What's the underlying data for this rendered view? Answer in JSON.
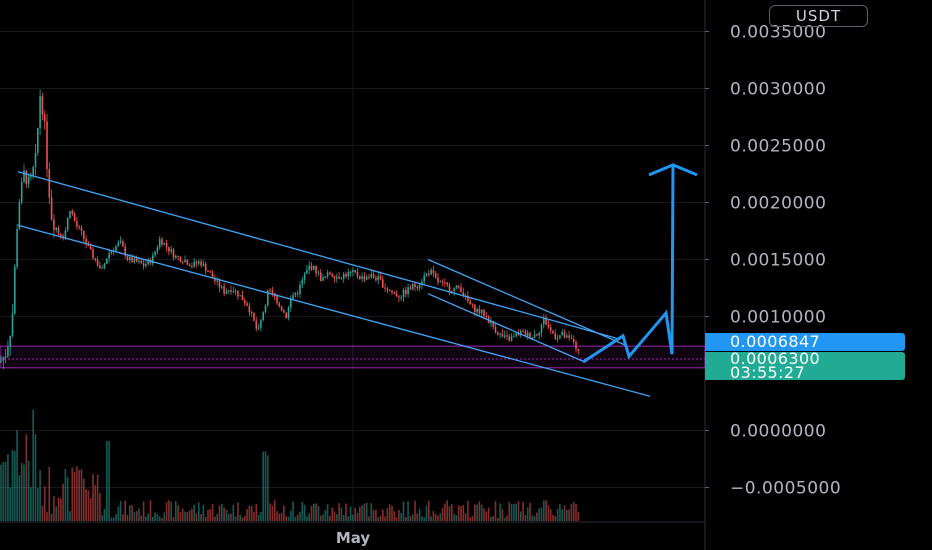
{
  "header": {
    "currency": "USDT"
  },
  "price_tags": {
    "target": "0.0006847",
    "last": "0.0006300",
    "countdown": "03:55:27"
  },
  "colors": {
    "background": "#000000",
    "up_candle": "#26a69a",
    "down_candle": "#ef5350",
    "channel_line": "#42a5f5",
    "projection": "#2196f3",
    "support_zone": "#9c27b0",
    "axis_text": "#b2b5be"
  },
  "chart_data": {
    "type": "candlestick",
    "y_axis": {
      "ticks": [
        "0.0035000",
        "0.0030000",
        "0.0025000",
        "0.0020000",
        "0.0015000",
        "0.0010000",
        "0.0000000",
        "−0.0005000"
      ],
      "tick_values": [
        0.0035,
        0.003,
        0.0025,
        0.002,
        0.0015,
        0.001,
        0.0,
        -0.0005
      ],
      "range": [
        -0.00058,
        0.0038
      ]
    },
    "x_axis": {
      "labels": [
        "May"
      ]
    },
    "price_path": [
      [
        0,
        0.0006
      ],
      [
        6,
        0.00068
      ],
      [
        12,
        0.00095
      ],
      [
        18,
        0.00195
      ],
      [
        24,
        0.00225
      ],
      [
        30,
        0.00215
      ],
      [
        36,
        0.0024
      ],
      [
        40,
        0.00295
      ],
      [
        44,
        0.00275
      ],
      [
        48,
        0.0022
      ],
      [
        52,
        0.00185
      ],
      [
        58,
        0.00175
      ],
      [
        64,
        0.0017
      ],
      [
        70,
        0.00195
      ],
      [
        76,
        0.0018
      ],
      [
        82,
        0.00172
      ],
      [
        88,
        0.0016
      ],
      [
        95,
        0.0015
      ],
      [
        102,
        0.0014
      ],
      [
        108,
        0.00155
      ],
      [
        114,
        0.0016
      ],
      [
        120,
        0.00165
      ],
      [
        128,
        0.0015
      ],
      [
        136,
        0.00148
      ],
      [
        144,
        0.00145
      ],
      [
        152,
        0.0015
      ],
      [
        160,
        0.00168
      ],
      [
        168,
        0.0016
      ],
      [
        176,
        0.00152
      ],
      [
        184,
        0.0015
      ],
      [
        192,
        0.00145
      ],
      [
        200,
        0.00148
      ],
      [
        208,
        0.0014
      ],
      [
        216,
        0.0013
      ],
      [
        224,
        0.00122
      ],
      [
        232,
        0.00125
      ],
      [
        240,
        0.00118
      ],
      [
        248,
        0.0011
      ],
      [
        254,
        0.00095
      ],
      [
        258,
        0.00085
      ],
      [
        262,
        0.001
      ],
      [
        268,
        0.00122
      ],
      [
        274,
        0.00118
      ],
      [
        280,
        0.0011
      ],
      [
        286,
        0.001
      ],
      [
        292,
        0.00118
      ],
      [
        298,
        0.00122
      ],
      [
        304,
        0.00135
      ],
      [
        310,
        0.00145
      ],
      [
        316,
        0.0014
      ],
      [
        322,
        0.00132
      ],
      [
        330,
        0.00138
      ],
      [
        338,
        0.00135
      ],
      [
        346,
        0.00137
      ],
      [
        354,
        0.00138
      ],
      [
        362,
        0.00134
      ],
      [
        370,
        0.00136
      ],
      [
        378,
        0.00133
      ],
      [
        386,
        0.00125
      ],
      [
        394,
        0.0012
      ],
      [
        400,
        0.00118
      ],
      [
        406,
        0.00122
      ],
      [
        412,
        0.00126
      ],
      [
        418,
        0.00128
      ],
      [
        424,
        0.00135
      ],
      [
        430,
        0.0014
      ],
      [
        436,
        0.00132
      ],
      [
        442,
        0.00128
      ],
      [
        448,
        0.00126
      ],
      [
        454,
        0.00124
      ],
      [
        460,
        0.00126
      ],
      [
        466,
        0.00115
      ],
      [
        472,
        0.00108
      ],
      [
        478,
        0.00105
      ],
      [
        484,
        0.00102
      ],
      [
        490,
        0.00095
      ],
      [
        496,
        0.00088
      ],
      [
        502,
        0.00082
      ],
      [
        508,
        0.0008
      ],
      [
        514,
        0.00082
      ],
      [
        520,
        0.00086
      ],
      [
        526,
        0.00084
      ],
      [
        532,
        0.00083
      ],
      [
        538,
        0.00086
      ],
      [
        544,
        0.00098
      ],
      [
        550,
        0.00088
      ],
      [
        556,
        0.00082
      ],
      [
        562,
        0.00084
      ],
      [
        568,
        0.0008
      ],
      [
        574,
        0.00078
      ],
      [
        580,
        0.00063
      ]
    ],
    "annotations": {
      "channel_outer_top": [
        [
          18,
          0.00227
        ],
        [
          620,
          0.0008
        ]
      ],
      "channel_outer_bottom": [
        [
          18,
          0.0018
        ],
        [
          650,
          0.0003
        ]
      ],
      "channel_inner_top": [
        [
          428,
          0.0015
        ],
        [
          625,
          0.00075
        ]
      ],
      "channel_inner_bottom": [
        [
          428,
          0.0012
        ],
        [
          585,
          0.0006
        ]
      ],
      "support_band": [
        0.00055,
        0.00074
      ],
      "support_mid": 0.00068,
      "projection_path": [
        [
          583,
          0.0006
        ],
        [
          623,
          0.00083
        ],
        [
          629,
          0.00065
        ],
        [
          666,
          0.00103
        ],
        [
          672,
          0.00067
        ],
        [
          673,
          0.00233
        ]
      ]
    }
  }
}
